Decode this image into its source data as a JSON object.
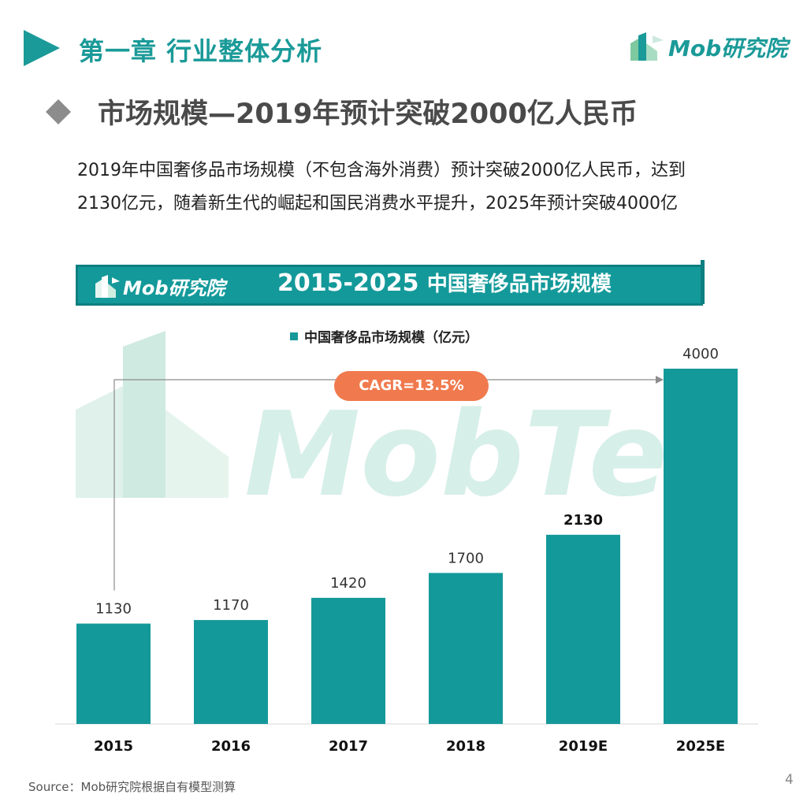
{
  "header": {
    "chapter_title": "第一章  行业整体分析",
    "brand": "Mob研究院"
  },
  "section": {
    "title": "市场规模—2019年预计突破2000亿人民币"
  },
  "intro": {
    "line1": "2019年中国奢侈品市场规模（不包含海外消费）预计突破2000亿人民币，达到",
    "line2": "2130亿元，随着新生代的崛起和国民消费水平提升，2025年预计突破4000亿"
  },
  "banner": {
    "brand": "Mob研究院",
    "title_year": "2015-2025",
    "title_text": "中国奢侈品市场规模"
  },
  "annotation": {
    "cagr": "CAGR=13.5%"
  },
  "watermark": "MobTec",
  "colors": {
    "bar": "#14999a",
    "accent": "#1a9a98",
    "cagr_pill": "#f07a4e",
    "banner": "#14999a"
  },
  "chart_data": {
    "type": "bar",
    "title": "2015-2025 中国奢侈品市场规模",
    "categories": [
      "2015",
      "2016",
      "2017",
      "2018",
      "2019E",
      "2025E"
    ],
    "series": [
      {
        "name": "中国奢侈品市场规模（亿元）",
        "values": [
          1130,
          1170,
          1420,
          1700,
          2130,
          4000
        ]
      }
    ],
    "value_labels": [
      "1130",
      "1170",
      "1420",
      "1700",
      "2130",
      "4000"
    ],
    "bold_labels": [
      "2130"
    ],
    "legend": "top-center",
    "grid": false
  },
  "footer": {
    "source": "Source：Mob研究院根据自有模型测算",
    "page": "4"
  }
}
